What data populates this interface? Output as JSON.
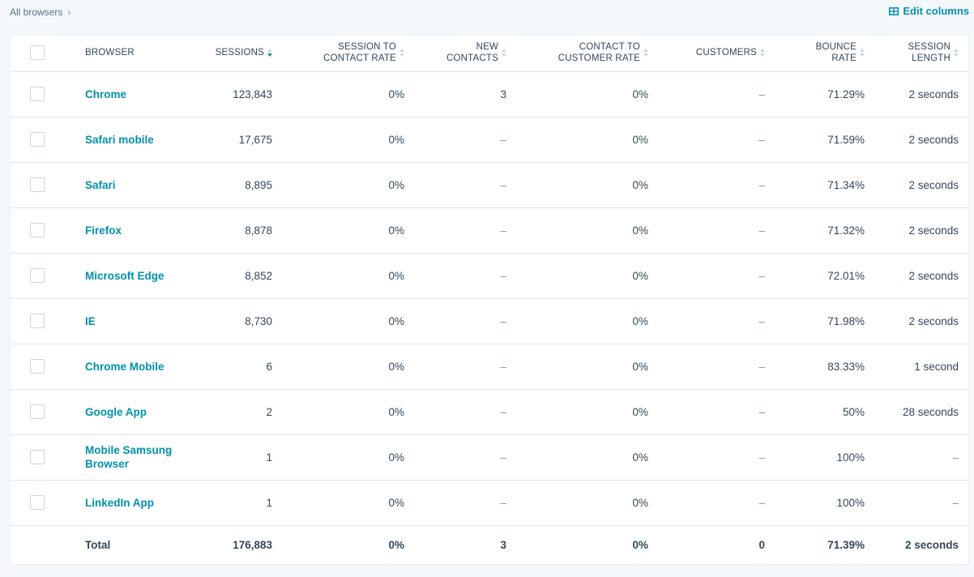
{
  "breadcrumb": {
    "label": "All browsers"
  },
  "toolbar": {
    "edit_columns_label": "Edit columns"
  },
  "table": {
    "headers": {
      "browser": "BROWSER",
      "sessions": "SESSIONS",
      "session_to_contact_rate_1": "SESSION TO",
      "session_to_contact_rate_2": "CONTACT RATE",
      "new_contacts_1": "NEW",
      "new_contacts_2": "CONTACTS",
      "contact_to_customer_rate_1": "CONTACT TO",
      "contact_to_customer_rate_2": "CUSTOMER RATE",
      "customers": "CUSTOMERS",
      "bounce_rate_1": "BOUNCE",
      "bounce_rate_2": "RATE",
      "session_length_1": "SESSION",
      "session_length_2": "LENGTH"
    },
    "rows": [
      {
        "browser": "Chrome",
        "sessions": "123,843",
        "s2c": "0%",
        "new_contacts": "3",
        "c2c": "0%",
        "customers": "–",
        "bounce": "71.29%",
        "length": "2 seconds"
      },
      {
        "browser": "Safari mobile",
        "sessions": "17,675",
        "s2c": "0%",
        "new_contacts": "–",
        "c2c": "0%",
        "customers": "–",
        "bounce": "71.59%",
        "length": "2 seconds"
      },
      {
        "browser": "Safari",
        "sessions": "8,895",
        "s2c": "0%",
        "new_contacts": "–",
        "c2c": "0%",
        "customers": "–",
        "bounce": "71.34%",
        "length": "2 seconds"
      },
      {
        "browser": "Firefox",
        "sessions": "8,878",
        "s2c": "0%",
        "new_contacts": "–",
        "c2c": "0%",
        "customers": "–",
        "bounce": "71.32%",
        "length": "2 seconds"
      },
      {
        "browser": "Microsoft Edge",
        "sessions": "8,852",
        "s2c": "0%",
        "new_contacts": "–",
        "c2c": "0%",
        "customers": "–",
        "bounce": "72.01%",
        "length": "2 seconds"
      },
      {
        "browser": "IE",
        "sessions": "8,730",
        "s2c": "0%",
        "new_contacts": "–",
        "c2c": "0%",
        "customers": "–",
        "bounce": "71.98%",
        "length": "2 seconds"
      },
      {
        "browser": "Chrome Mobile",
        "sessions": "6",
        "s2c": "0%",
        "new_contacts": "–",
        "c2c": "0%",
        "customers": "–",
        "bounce": "83.33%",
        "length": "1 second"
      },
      {
        "browser": "Google App",
        "sessions": "2",
        "s2c": "0%",
        "new_contacts": "–",
        "c2c": "0%",
        "customers": "–",
        "bounce": "50%",
        "length": "28 seconds"
      },
      {
        "browser": "Mobile Samsung Browser",
        "sessions": "1",
        "s2c": "0%",
        "new_contacts": "–",
        "c2c": "0%",
        "customers": "–",
        "bounce": "100%",
        "length": "–"
      },
      {
        "browser": "LinkedIn App",
        "sessions": "1",
        "s2c": "0%",
        "new_contacts": "–",
        "c2c": "0%",
        "customers": "–",
        "bounce": "100%",
        "length": "–"
      }
    ],
    "total": {
      "label": "Total",
      "sessions": "176,883",
      "s2c": "0%",
      "new_contacts": "3",
      "c2c": "0%",
      "customers": "0",
      "bounce": "71.39%",
      "length": "2 seconds"
    }
  },
  "colors": {
    "link": "#0091ae",
    "text": "#33475b",
    "border": "#dfe3eb",
    "background": "#f5f8fa"
  }
}
